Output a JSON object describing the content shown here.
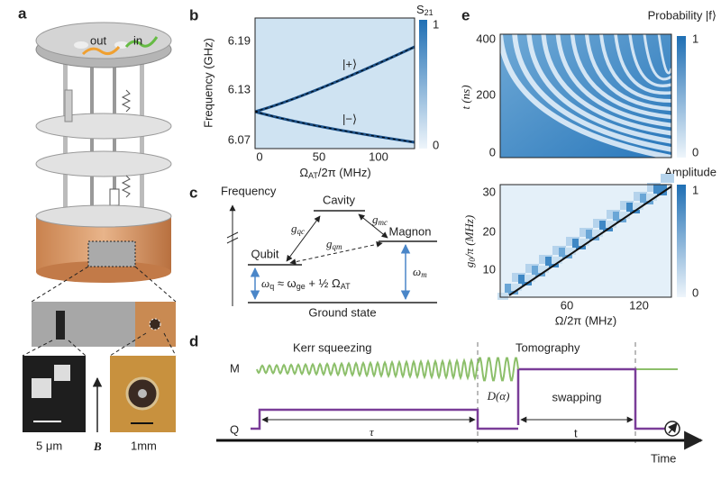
{
  "a": {
    "label": "a",
    "out": "out",
    "in": "in",
    "scale_chip": "5 μm",
    "field": "B",
    "scale_sample": "1mm"
  },
  "b": {
    "label": "b",
    "ylabel": "Frequency (GHz)",
    "yticks": [
      "6.19",
      "6.13",
      "6.07"
    ],
    "xticks": [
      "0",
      "50",
      "100"
    ],
    "xlabel": [
      "Ω",
      "AT",
      "/2π (MHz)"
    ],
    "colorbar": [
      "S",
      "21"
    ],
    "colorbar_ticks": [
      "1",
      "0"
    ],
    "upper": "|+⟩",
    "lower": "|−⟩"
  },
  "c": {
    "label": "c",
    "axis": "Frequency",
    "cavity": "Cavity",
    "qubit": "Qubit",
    "magnon": "Magnon",
    "g_qc": [
      "g",
      "qc"
    ],
    "g_mc": [
      "g",
      "mc"
    ],
    "g_qm": [
      "g",
      "qm"
    ],
    "omega_q": [
      "ω",
      "q",
      " ≈ ω",
      "ge",
      " + ½ Ω",
      "AT"
    ],
    "omega_m": [
      "ω",
      "m"
    ],
    "ground": "Ground state"
  },
  "d": {
    "label": "d",
    "kerr": "Kerr squeezing",
    "tomography": "Tomography",
    "m": "M",
    "q": "Q",
    "displacement": "D(α)",
    "tau": "τ",
    "swapping": "swapping",
    "t": "t",
    "time": "Time"
  },
  "e": {
    "label": "e",
    "top": {
      "colorbar": "Probability |f⟩",
      "ylabel": "t (ns)",
      "yticks": [
        "400",
        "200",
        "0"
      ],
      "colorbar_ticks": [
        "1",
        "0"
      ]
    },
    "bottom": {
      "colorbar": "Amplitude",
      "ylabel": [
        "g",
        "0",
        "/π (MHz)"
      ],
      "yticks": [
        "30",
        "20",
        "10"
      ],
      "xticks": [
        "60",
        "120"
      ],
      "xlabel": "Ω/2π (MHz)",
      "colorbar_ticks": [
        "1",
        "0"
      ]
    }
  }
}
